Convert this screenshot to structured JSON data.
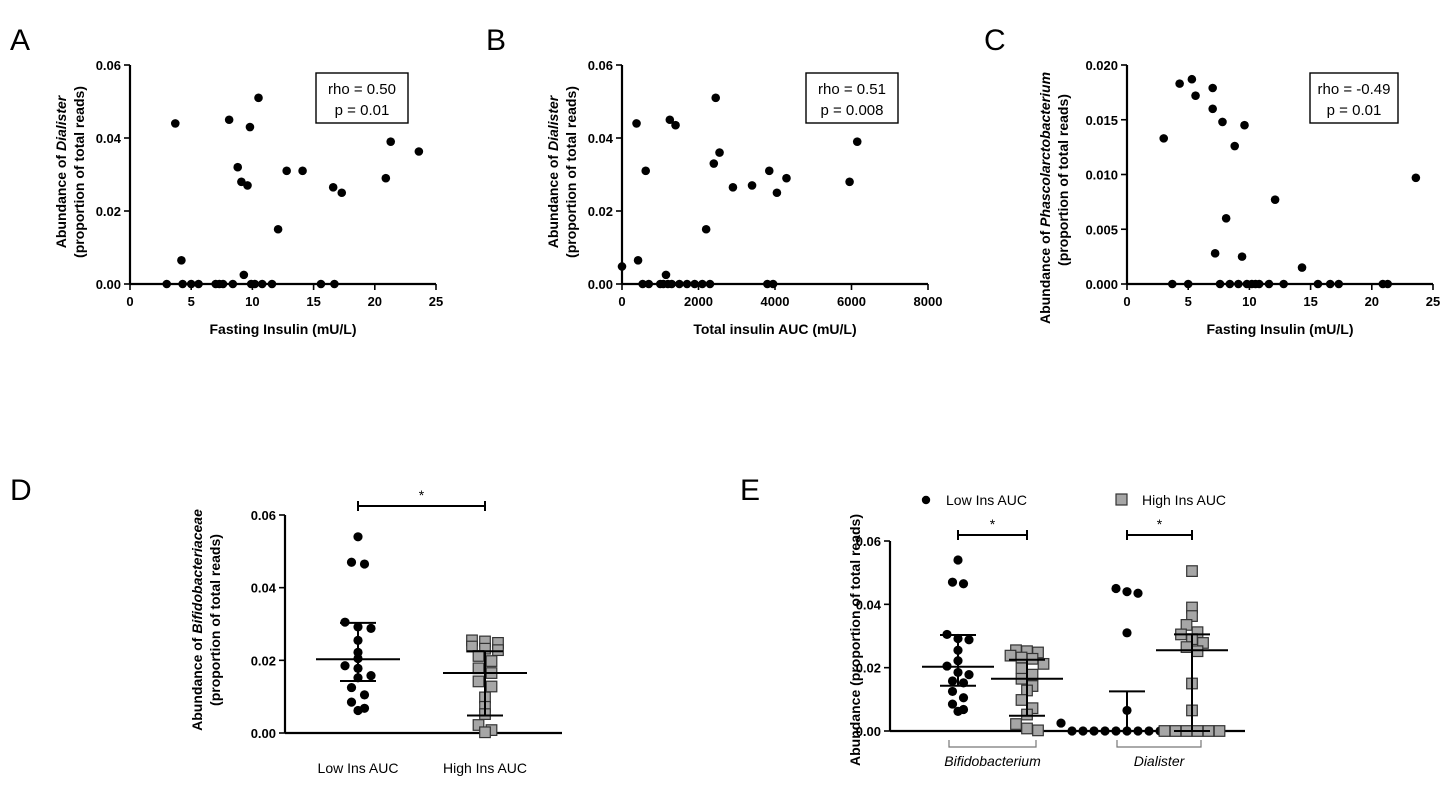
{
  "chart_data": [
    {
      "id": "A",
      "type": "scatter",
      "panel_label": "A",
      "xlabel": "Fasting Insulin (mU/L)",
      "ylabel_pre": "Abundance of ",
      "ylabel_italic": "Dialister",
      "ylabel2": "(proportion of total reads)",
      "xlim": [
        0,
        25
      ],
      "ylim": [
        0,
        0.06
      ],
      "xticks": [
        "0",
        "5",
        "10",
        "15",
        "20",
        "25"
      ],
      "yticks": [
        "0.00",
        "0.02",
        "0.04",
        "0.06"
      ],
      "stat_line1": "rho = 0.50",
      "stat_line2": "p = 0.01",
      "points": [
        [
          3.0,
          0
        ],
        [
          3.7,
          0.044
        ],
        [
          4.2,
          0.0065
        ],
        [
          4.3,
          0
        ],
        [
          5.0,
          0
        ],
        [
          5.6,
          0
        ],
        [
          7.0,
          0
        ],
        [
          7.3,
          0
        ],
        [
          7.6,
          0
        ],
        [
          8.1,
          0.045
        ],
        [
          8.4,
          0
        ],
        [
          8.8,
          0.032
        ],
        [
          9.1,
          0.028
        ],
        [
          9.3,
          0.0025
        ],
        [
          9.6,
          0.027
        ],
        [
          9.8,
          0.043
        ],
        [
          9.9,
          0
        ],
        [
          10.2,
          0
        ],
        [
          10.5,
          0.051
        ],
        [
          10.8,
          0
        ],
        [
          11.6,
          0
        ],
        [
          12.1,
          0.015
        ],
        [
          12.8,
          0.031
        ],
        [
          14.1,
          0.031
        ],
        [
          15.6,
          0
        ],
        [
          16.6,
          0.0265
        ],
        [
          16.7,
          0
        ],
        [
          17.3,
          0.025
        ],
        [
          20.9,
          0.029
        ],
        [
          21.3,
          0.039
        ],
        [
          23.6,
          0.0363
        ]
      ]
    },
    {
      "id": "B",
      "type": "scatter",
      "panel_label": "B",
      "xlabel": "Total insulin AUC (mU/L)",
      "ylabel_pre": "Abundance of ",
      "ylabel_italic": "Dialister",
      "ylabel2": "(proportion of total reads)",
      "xlim": [
        0,
        8000
      ],
      "ylim": [
        0,
        0.06
      ],
      "xticks": [
        "0",
        "2000",
        "4000",
        "6000",
        "8000"
      ],
      "yticks": [
        "0.00",
        "0.02",
        "0.04",
        "0.06"
      ],
      "stat_line1": "rho = 0.51",
      "stat_line2": "p = 0.008",
      "points": [
        [
          0,
          0.0048
        ],
        [
          380,
          0.044
        ],
        [
          420,
          0.0065
        ],
        [
          540,
          0
        ],
        [
          620,
          0.031
        ],
        [
          700,
          0
        ],
        [
          1000,
          0
        ],
        [
          1080,
          0
        ],
        [
          1150,
          0.0025
        ],
        [
          1200,
          0
        ],
        [
          1250,
          0.045
        ],
        [
          1300,
          0
        ],
        [
          1400,
          0.0435
        ],
        [
          1500,
          0
        ],
        [
          1700,
          0
        ],
        [
          1900,
          0
        ],
        [
          2100,
          0
        ],
        [
          2200,
          0.015
        ],
        [
          2300,
          0
        ],
        [
          2400,
          0.033
        ],
        [
          2450,
          0.051
        ],
        [
          2550,
          0.036
        ],
        [
          2900,
          0.0265
        ],
        [
          3400,
          0.027
        ],
        [
          3800,
          0
        ],
        [
          3850,
          0.031
        ],
        [
          3950,
          0
        ],
        [
          4050,
          0.025
        ],
        [
          4300,
          0.029
        ],
        [
          5950,
          0.028
        ],
        [
          6150,
          0.039
        ]
      ]
    },
    {
      "id": "C",
      "type": "scatter",
      "panel_label": "C",
      "xlabel": "Fasting Insulin (mU/L)",
      "ylabel_pre": "Abundance of ",
      "ylabel_italic": "Phascolarctobacterium",
      "ylabel2": "(proportion of total reads)",
      "xlim": [
        0,
        25
      ],
      "ylim": [
        0,
        0.02
      ],
      "xticks": [
        "0",
        "5",
        "10",
        "15",
        "20",
        "25"
      ],
      "yticks": [
        "0.000",
        "0.005",
        "0.010",
        "0.015",
        "0.020"
      ],
      "stat_line1": "rho = -0.49",
      "stat_line2": "p = 0.01",
      "points": [
        [
          3.0,
          0.0133
        ],
        [
          3.7,
          0
        ],
        [
          4.3,
          0.0183
        ],
        [
          5.0,
          0
        ],
        [
          5.3,
          0.0187
        ],
        [
          5.6,
          0.0172
        ],
        [
          7.0,
          0.0179
        ],
        [
          7.0,
          0.016
        ],
        [
          7.2,
          0.0028
        ],
        [
          7.6,
          0
        ],
        [
          7.8,
          0.0148
        ],
        [
          8.1,
          0.006
        ],
        [
          8.4,
          0
        ],
        [
          8.8,
          0.0126
        ],
        [
          9.1,
          0
        ],
        [
          9.4,
          0.0025
        ],
        [
          9.6,
          0.0145
        ],
        [
          9.8,
          0
        ],
        [
          10.2,
          0
        ],
        [
          10.5,
          0
        ],
        [
          10.8,
          0
        ],
        [
          11.6,
          0
        ],
        [
          12.1,
          0.0077
        ],
        [
          12.8,
          0
        ],
        [
          14.3,
          0.0015
        ],
        [
          15.6,
          0
        ],
        [
          16.6,
          0
        ],
        [
          17.3,
          0
        ],
        [
          20.9,
          0
        ],
        [
          21.3,
          0
        ],
        [
          23.6,
          0.0097
        ]
      ]
    },
    {
      "id": "D",
      "type": "scatter",
      "panel_label": "D",
      "ylabel_pre": "Abundance of ",
      "ylabel_italic": "Bifidobacteriaceae",
      "ylabel2": "(proportion of total reads)",
      "ylim": [
        0,
        0.06
      ],
      "yticks": [
        "0.00",
        "0.02",
        "0.04",
        "0.06"
      ],
      "categories": [
        "Low Ins AUC",
        "High Ins AUC"
      ],
      "significance": "*",
      "groups": [
        {
          "name": "Low Ins AUC",
          "marker": "circle",
          "median": 0.0203,
          "q1": 0.0143,
          "q3": 0.0303,
          "values": [
            0.054,
            0.047,
            0.0465,
            0.0305,
            0.0292,
            0.0288,
            0.0255,
            0.0222,
            0.0205,
            0.0185,
            0.0178,
            0.0158,
            0.0152,
            0.0125,
            0.0105,
            0.0085,
            0.0068,
            0.0062
          ]
        },
        {
          "name": "High Ins AUC",
          "marker": "square",
          "median": 0.0165,
          "q1": 0.0048,
          "q3": 0.0225,
          "values": [
            0.0255,
            0.0252,
            0.0248,
            0.0238,
            0.0232,
            0.0228,
            0.0212,
            0.0198,
            0.0178,
            0.0165,
            0.0142,
            0.0128,
            0.0098,
            0.0072,
            0.0052,
            0.0022,
            0.0008,
            0.0002
          ]
        }
      ]
    },
    {
      "id": "E",
      "type": "scatter",
      "panel_label": "E",
      "ylabel": "Abundance (proportion of total reads)",
      "ylim": [
        0,
        0.06
      ],
      "yticks": [
        "0.00",
        "0.02",
        "0.04",
        "0.06"
      ],
      "categories": [
        "Bifidobacterium",
        "Dialister"
      ],
      "legend": [
        "Low Ins AUC",
        "High Ins AUC"
      ],
      "significance": [
        "*",
        "*"
      ],
      "groups": [
        {
          "category": "Bifidobacterium",
          "name": "Low Ins AUC",
          "marker": "circle",
          "median": 0.0203,
          "q1": 0.0143,
          "q3": 0.0303,
          "values": [
            0.054,
            0.047,
            0.0465,
            0.0305,
            0.0292,
            0.0288,
            0.0255,
            0.0222,
            0.0205,
            0.0185,
            0.0178,
            0.0158,
            0.0152,
            0.0125,
            0.0105,
            0.0085,
            0.0068,
            0.0062
          ]
        },
        {
          "category": "Bifidobacterium",
          "name": "High Ins AUC",
          "marker": "square",
          "median": 0.0165,
          "q1": 0.0048,
          "q3": 0.0225,
          "values": [
            0.0255,
            0.0252,
            0.0248,
            0.0238,
            0.0232,
            0.0228,
            0.0212,
            0.0198,
            0.0178,
            0.0165,
            0.0142,
            0.0128,
            0.0098,
            0.0072,
            0.0052,
            0.0022,
            0.0008,
            0.0002
          ]
        },
        {
          "category": "Dialister",
          "name": "Low Ins AUC",
          "marker": "circle",
          "median": 0,
          "q1": 0,
          "q3": 0.0125,
          "values": [
            0.045,
            0.044,
            0.0435,
            0.031,
            0.0065,
            0.0025,
            0,
            0,
            0,
            0,
            0,
            0,
            0,
            0,
            0,
            0,
            0,
            0
          ]
        },
        {
          "category": "Dialister",
          "name": "High Ins AUC",
          "marker": "square",
          "median": 0.0255,
          "q1": 0,
          "q3": 0.0305,
          "values": [
            0.0505,
            0.039,
            0.0363,
            0.0335,
            0.0312,
            0.0305,
            0.029,
            0.0278,
            0.0265,
            0.0252,
            0.015,
            0.0065,
            0,
            0,
            0,
            0,
            0,
            0
          ]
        }
      ]
    }
  ]
}
